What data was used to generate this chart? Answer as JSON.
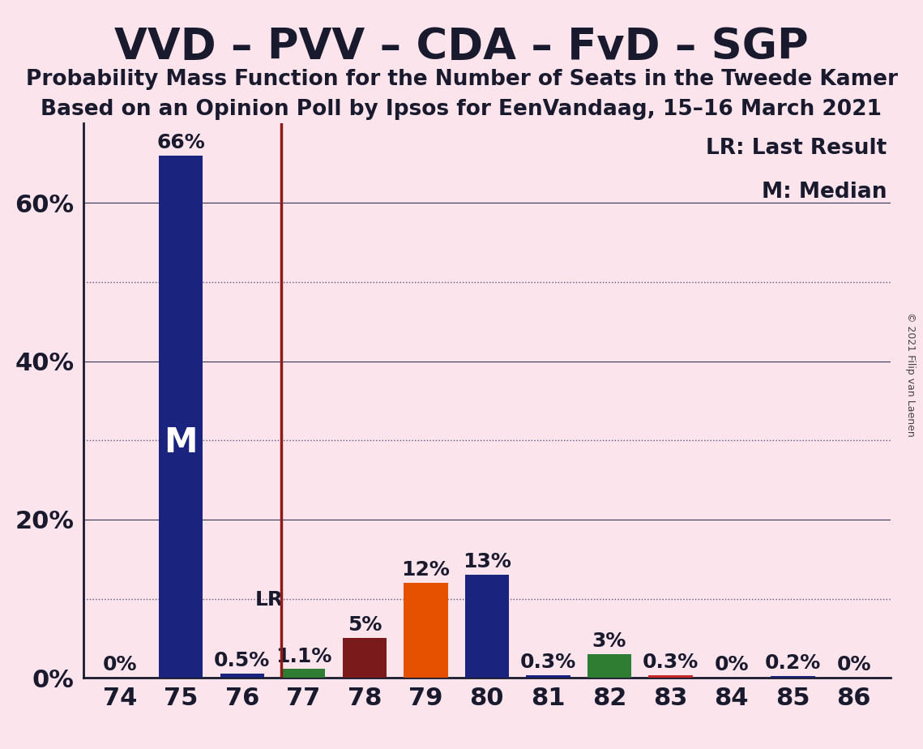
{
  "title": "VVD – PVV – CDA – FvD – SGP",
  "subtitle1": "Probability Mass Function for the Number of Seats in the Tweede Kamer",
  "subtitle2": "Based on an Opinion Poll by Ipsos for EenVandaag, 15–16 March 2021",
  "copyright": "© 2021 Filip van Laenen",
  "legend_lr": "LR: Last Result",
  "legend_m": "M: Median",
  "categories": [
    74,
    75,
    76,
    77,
    78,
    79,
    80,
    81,
    82,
    83,
    84,
    85,
    86
  ],
  "values": [
    0.0,
    66.0,
    0.5,
    1.1,
    5.0,
    12.0,
    13.0,
    0.3,
    3.0,
    0.3,
    0.0,
    0.2,
    0.0
  ],
  "bar_colors": [
    "#1a237e",
    "#1a237e",
    "#1a237e",
    "#2e7d32",
    "#7b1a1a",
    "#e65100",
    "#1a237e",
    "#1a237e",
    "#2e7d32",
    "#c62828",
    "#1a237e",
    "#1a237e",
    "#1a237e"
  ],
  "value_labels": [
    "0%",
    "66%",
    "0.5%",
    "1.1%",
    "5%",
    "12%",
    "13%",
    "0.3%",
    "3%",
    "0.3%",
    "0%",
    "0.2%",
    "0%"
  ],
  "median_bar": 75,
  "last_result_bar": 77,
  "background_color": "#fce4ec",
  "ylim": [
    0,
    70
  ],
  "yticks": [
    0,
    20,
    40,
    60
  ],
  "ytick_labels": [
    "0%",
    "20%",
    "40%",
    "60%"
  ],
  "solid_grid": [
    20,
    40,
    60
  ],
  "dotted_grid": [
    10,
    30,
    50
  ],
  "lr_line_color": "#8b1a1a",
  "title_fontsize": 38,
  "subtitle_fontsize": 19,
  "axis_label_fontsize": 22,
  "bar_label_fontsize": 18,
  "legend_fontsize": 19,
  "text_color": "#1a1a2e"
}
